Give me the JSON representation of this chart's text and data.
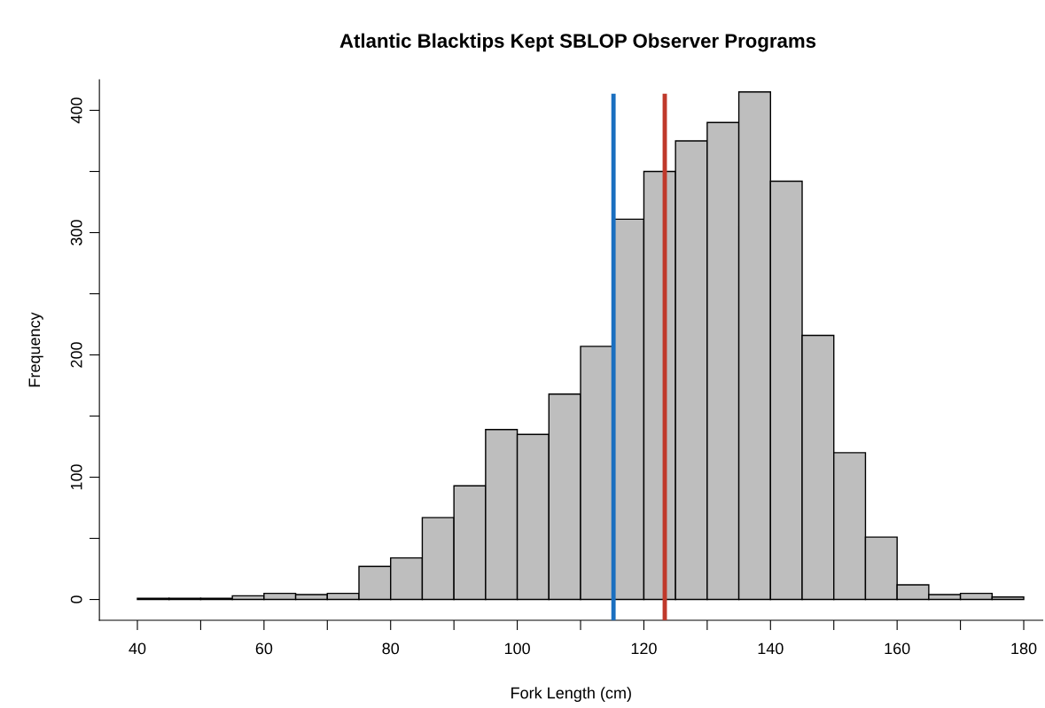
{
  "chart_data": {
    "type": "histogram",
    "title": "Atlantic Blacktips Kept SBLOP Observer Programs",
    "xlabel": "Fork Length (cm)",
    "ylabel": "Frequency",
    "bins": [
      40,
      45,
      50,
      55,
      60,
      65,
      70,
      75,
      80,
      85,
      90,
      95,
      100,
      105,
      110,
      115,
      120,
      125,
      130,
      135,
      140,
      145,
      150,
      155,
      160,
      165,
      170,
      175,
      180
    ],
    "values": [
      1,
      1,
      1,
      3,
      5,
      4,
      5,
      27,
      34,
      67,
      93,
      139,
      135,
      168,
      207,
      311,
      350,
      375,
      390,
      415,
      342,
      216,
      120,
      51,
      12,
      4,
      5,
      2
    ],
    "color": "#bebebe",
    "xlim": [
      34,
      183
    ],
    "ylim": [
      -17,
      425
    ],
    "xticks": [
      40,
      {
        "value": 50,
        "label": null
      },
      60,
      {
        "value": 70,
        "label": null
      },
      80,
      {
        "value": 90,
        "label": null
      },
      100,
      {
        "value": 110,
        "label": null
      },
      120,
      {
        "value": 130,
        "label": null
      },
      140,
      {
        "value": 150,
        "label": null
      },
      160,
      {
        "value": 170,
        "label": null
      },
      180
    ],
    "yticks": [
      0,
      {
        "value": 50,
        "label": null
      },
      100,
      {
        "value": 150,
        "label": null
      },
      200,
      {
        "value": 250,
        "label": null
      },
      300,
      {
        "value": 350,
        "label": null
      },
      400
    ],
    "ref_lines": [
      {
        "axis": "x",
        "value": 115.2,
        "color": "#1a6fc0"
      },
      {
        "axis": "x",
        "value": 123.3,
        "color": "#c0392b"
      }
    ],
    "grid": false
  }
}
